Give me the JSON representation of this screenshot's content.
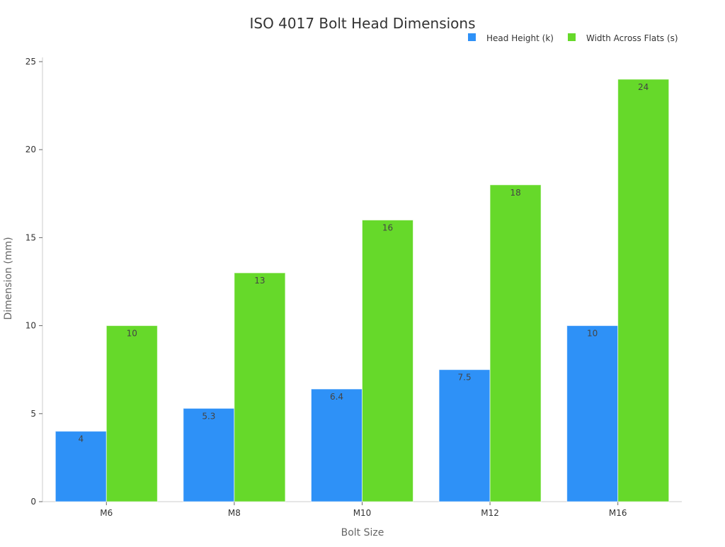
{
  "chart_data": {
    "type": "bar",
    "title": "ISO 4017 Bolt Head Dimensions",
    "xlabel": "Bolt Size",
    "ylabel": "Dimension (mm)",
    "categories": [
      "M6",
      "M8",
      "M10",
      "M12",
      "M16"
    ],
    "series": [
      {
        "name": "Head Height (k)",
        "values": [
          4,
          5.3,
          6.4,
          7.5,
          10
        ],
        "color": "#2e91f7"
      },
      {
        "name": "Width Across Flats (s)",
        "values": [
          10,
          13,
          16,
          18,
          24
        ],
        "color": "#66d92a"
      }
    ],
    "ylim": [
      0,
      25
    ],
    "yticks": [
      0,
      5,
      10,
      15,
      20,
      25
    ],
    "grid": false,
    "legend": "top-right",
    "data_labels": true
  }
}
